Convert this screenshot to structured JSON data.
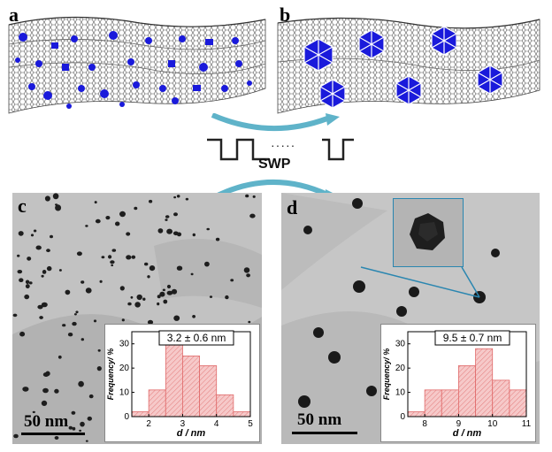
{
  "panels": {
    "a": {
      "letter": "a"
    },
    "b": {
      "letter": "b"
    },
    "c": {
      "letter": "c",
      "scale_label": "50 nm"
    },
    "d": {
      "letter": "d",
      "scale_label": "50 nm"
    }
  },
  "process": {
    "label": "SWP",
    "dots": "·····"
  },
  "colors": {
    "nanoparticle": "#1a1adb",
    "bar_fill": "#f6c9c9",
    "bar_edge": "#e06a6a",
    "arrow": "#5fb3c9",
    "inset_line": "#2a86b0"
  },
  "chart_data": [
    {
      "type": "bar",
      "title": "3.2 ± 0.6 nm",
      "xlabel": "d / nm",
      "ylabel": "Frequency/ %",
      "x": [
        1.75,
        2.25,
        2.75,
        3.25,
        3.75,
        4.25,
        4.75
      ],
      "values": [
        2,
        11,
        30,
        25,
        21,
        9,
        2
      ],
      "xlim": [
        1.5,
        5
      ],
      "ylim": [
        0,
        35
      ],
      "xticks": [
        2,
        3,
        4,
        5
      ],
      "yticks": [
        0,
        10,
        20,
        30
      ]
    },
    {
      "type": "bar",
      "title": "9.5 ± 0.7 nm",
      "xlabel": "d / nm",
      "ylabel": "Frequency/ %",
      "x": [
        7.75,
        8.25,
        8.75,
        9.25,
        9.75,
        10.25,
        10.75
      ],
      "values": [
        2,
        11,
        11,
        21,
        28,
        15,
        11
      ],
      "xlim": [
        7.5,
        11
      ],
      "ylim": [
        0,
        35
      ],
      "xticks": [
        8,
        9,
        10,
        11
      ],
      "yticks": [
        0,
        10,
        20,
        30
      ]
    }
  ]
}
